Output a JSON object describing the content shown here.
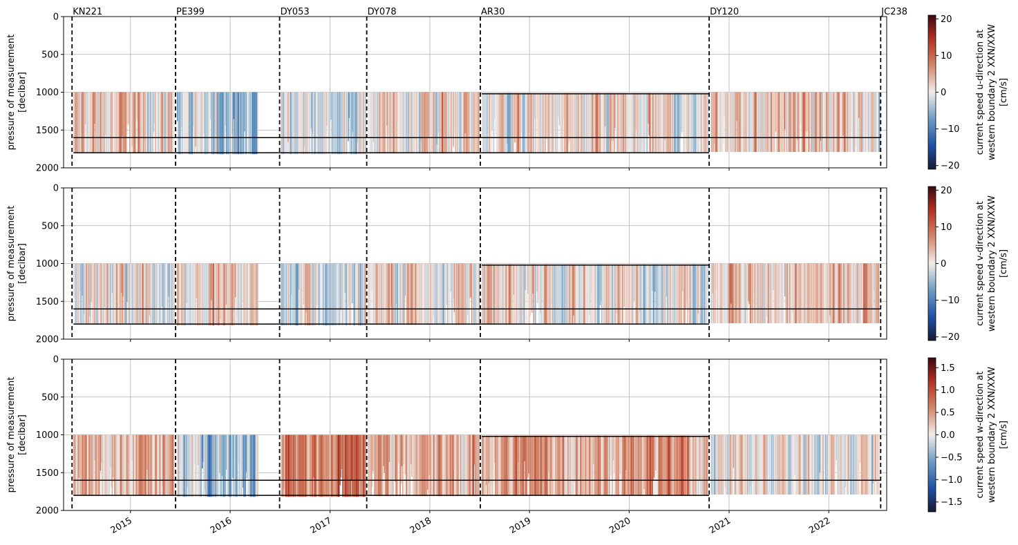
{
  "figure": {
    "x_ticks": [
      "2015",
      "2016",
      "2017",
      "2018",
      "2019",
      "2020",
      "2021",
      "2022"
    ],
    "y_ticks": [
      "0",
      "500",
      "1000",
      "1500",
      "2000"
    ],
    "ylabel_line1": "pressure of measurement",
    "ylabel_line2": "[decibar]",
    "cruises": [
      "KN221",
      "PE399",
      "DY053",
      "DY078",
      "AR30",
      "DY120",
      "JC238"
    ]
  },
  "chart_data": [
    {
      "type": "heatmap",
      "title": "",
      "xlabel": "",
      "ylabel": "pressure of measurement [decibar]",
      "x_axis": "date",
      "xlim": [
        "2014-06-01",
        "2022-08-01"
      ],
      "ylim": [
        2000,
        0
      ],
      "y_inverted": true,
      "grid": true,
      "colormap": "balance (blue-white-red)",
      "colorbar": {
        "label_line1": "current speed u-direction at",
        "label_line2": "western boundary 2 XXN/XXW",
        "label_line3": "[cm/s]",
        "range": [
          -21,
          21
        ],
        "ticks": [
          "20",
          "10",
          "0",
          "−10",
          "−20"
        ]
      },
      "cruise_lines": [
        {
          "name": "KN221",
          "date": "2014-06-01"
        },
        {
          "name": "PE399",
          "date": "2015-06-15"
        },
        {
          "name": "DY053",
          "date": "2016-06-30"
        },
        {
          "name": "DY078",
          "date": "2017-05-15"
        },
        {
          "name": "AR30",
          "date": "2018-07-05"
        },
        {
          "name": "DY120",
          "date": "2020-10-20"
        },
        {
          "name": "JC238",
          "date": "2022-07-10"
        }
      ],
      "deployments": [
        {
          "start": "2014-06-01",
          "end": "2015-06-15",
          "top": 1000,
          "bottom": 1800,
          "bias": 0.2
        },
        {
          "start": "2015-06-15",
          "end": "2016-04-15",
          "top": 1000,
          "bottom": 1820,
          "bias": -0.35
        },
        {
          "start": "2016-06-30",
          "end": "2017-05-15",
          "top": 1000,
          "bottom": 1820,
          "bias": -0.1
        },
        {
          "start": "2017-05-15",
          "end": "2018-07-05",
          "top": 1000,
          "bottom": 1810,
          "bias": 0.15
        },
        {
          "start": "2018-07-05",
          "end": "2020-10-20",
          "top": 1010,
          "bottom": 1800,
          "bias": 0.05
        },
        {
          "start": "2020-10-20",
          "end": "2022-07-10",
          "top": 1000,
          "bottom": 1790,
          "bias": 0.2
        }
      ],
      "reference_lines": [
        {
          "start": "2014-06-01",
          "end": "2022-07-10",
          "pressure": 1600
        },
        {
          "start": "2014-06-01",
          "end": "2020-10-20",
          "pressure": 1800
        },
        {
          "start": "2018-07-05",
          "end": "2020-10-20",
          "pressure": 1020
        }
      ]
    },
    {
      "type": "heatmap",
      "title": "",
      "xlabel": "",
      "ylabel": "pressure of measurement [decibar]",
      "x_axis": "date",
      "xlim": [
        "2014-06-01",
        "2022-08-01"
      ],
      "ylim": [
        2000,
        0
      ],
      "y_inverted": true,
      "grid": true,
      "colormap": "balance (blue-white-red)",
      "colorbar": {
        "label_line1": "current speed v-direction at",
        "label_line2": "western boundary 2 XXN/XXW",
        "label_line3": "[cm/s]",
        "range": [
          -21,
          21
        ],
        "ticks": [
          "20",
          "10",
          "0",
          "−10",
          "−20"
        ]
      },
      "cruise_lines": [
        {
          "name": "KN221",
          "date": "2014-06-01"
        },
        {
          "name": "PE399",
          "date": "2015-06-15"
        },
        {
          "name": "DY053",
          "date": "2016-06-30"
        },
        {
          "name": "DY078",
          "date": "2017-05-15"
        },
        {
          "name": "AR30",
          "date": "2018-07-05"
        },
        {
          "name": "DY120",
          "date": "2020-10-20"
        },
        {
          "name": "JC238",
          "date": "2022-07-10"
        }
      ],
      "deployments": [
        {
          "start": "2014-06-01",
          "end": "2015-06-15",
          "top": 1000,
          "bottom": 1800,
          "bias": 0.05
        },
        {
          "start": "2015-06-15",
          "end": "2016-04-15",
          "top": 1000,
          "bottom": 1820,
          "bias": 0.25
        },
        {
          "start": "2016-06-30",
          "end": "2017-05-15",
          "top": 1000,
          "bottom": 1820,
          "bias": -0.15
        },
        {
          "start": "2017-05-15",
          "end": "2018-07-05",
          "top": 1000,
          "bottom": 1810,
          "bias": 0.2
        },
        {
          "start": "2018-07-05",
          "end": "2020-10-20",
          "top": 1010,
          "bottom": 1800,
          "bias": 0.05
        },
        {
          "start": "2020-10-20",
          "end": "2022-07-10",
          "top": 1000,
          "bottom": 1790,
          "bias": 0.25
        }
      ],
      "reference_lines": [
        {
          "start": "2014-06-01",
          "end": "2022-07-10",
          "pressure": 1600
        },
        {
          "start": "2014-06-01",
          "end": "2020-10-20",
          "pressure": 1800
        },
        {
          "start": "2018-07-05",
          "end": "2020-10-20",
          "pressure": 1020
        }
      ]
    },
    {
      "type": "heatmap",
      "title": "",
      "xlabel": "",
      "ylabel": "pressure of measurement [decibar]",
      "x_axis": "date",
      "xlim": [
        "2014-06-01",
        "2022-08-01"
      ],
      "ylim": [
        2000,
        0
      ],
      "y_inverted": true,
      "grid": true,
      "colormap": "balance (blue-white-red)",
      "colorbar": {
        "label_line1": "current speed w-direction at",
        "label_line2": "western boundary 2 XXN/XXW",
        "label_line3": "[cm/s]",
        "range": [
          -1.72,
          1.72
        ],
        "ticks": [
          "1.5",
          "1.0",
          "0.5",
          "0.0",
          "−0.5",
          "−1.0",
          "−1.5"
        ]
      },
      "cruise_lines": [
        {
          "name": "KN221",
          "date": "2014-06-01"
        },
        {
          "name": "PE399",
          "date": "2015-06-15"
        },
        {
          "name": "DY053",
          "date": "2016-06-30"
        },
        {
          "name": "DY078",
          "date": "2017-05-15"
        },
        {
          "name": "AR30",
          "date": "2018-07-05"
        },
        {
          "name": "DY120",
          "date": "2020-10-20"
        },
        {
          "name": "JC238",
          "date": "2022-07-10"
        }
      ],
      "deployments": [
        {
          "start": "2014-06-01",
          "end": "2015-06-15",
          "top": 1000,
          "bottom": 1800,
          "bias": 0.35
        },
        {
          "start": "2015-06-15",
          "end": "2016-04-15",
          "top": 1000,
          "bottom": 1820,
          "bias": -0.3
        },
        {
          "start": "2016-06-30",
          "end": "2017-05-15",
          "top": 1000,
          "bottom": 1820,
          "bias": 0.8
        },
        {
          "start": "2017-05-15",
          "end": "2018-07-05",
          "top": 1000,
          "bottom": 1810,
          "bias": 0.4
        },
        {
          "start": "2018-07-05",
          "end": "2020-10-20",
          "top": 1010,
          "bottom": 1800,
          "bias": 0.55
        },
        {
          "start": "2020-10-20",
          "end": "2022-07-10",
          "top": 1000,
          "bottom": 1790,
          "bias": 0.1
        }
      ],
      "reference_lines": [
        {
          "start": "2014-06-01",
          "end": "2022-07-10",
          "pressure": 1600
        },
        {
          "start": "2014-06-01",
          "end": "2020-10-20",
          "pressure": 1800
        },
        {
          "start": "2018-07-05",
          "end": "2020-10-20",
          "pressure": 1020
        }
      ]
    }
  ]
}
